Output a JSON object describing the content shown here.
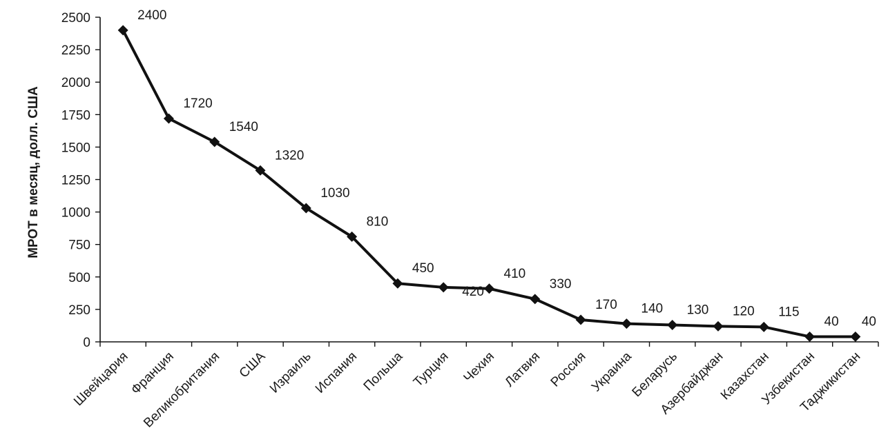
{
  "chart_data": {
    "type": "line",
    "title": "",
    "xlabel": "",
    "ylabel": "МРОТ в месяц, долл. США",
    "ylim": [
      0,
      2500
    ],
    "yticks": [
      0,
      250,
      500,
      750,
      1000,
      1250,
      1500,
      1750,
      2000,
      2250,
      2500
    ],
    "grid": false,
    "legend": "none",
    "line_color": "#111111",
    "marker": "diamond",
    "categories": [
      "Швейцария",
      "Франция",
      "Великобритания",
      "США",
      "Израиль",
      "Испания",
      "Польша",
      "Турция",
      "Чехия",
      "Латвия",
      "Россия",
      "Украина",
      "Беларусь",
      "Азербайджан",
      "Казахстан",
      "Узбекистан",
      "Таджикистан"
    ],
    "series": [
      {
        "values": [
          2400,
          1720,
          1540,
          1320,
          1030,
          810,
          450,
          420,
          410,
          330,
          170,
          140,
          130,
          120,
          115,
          40,
          40
        ]
      }
    ]
  }
}
